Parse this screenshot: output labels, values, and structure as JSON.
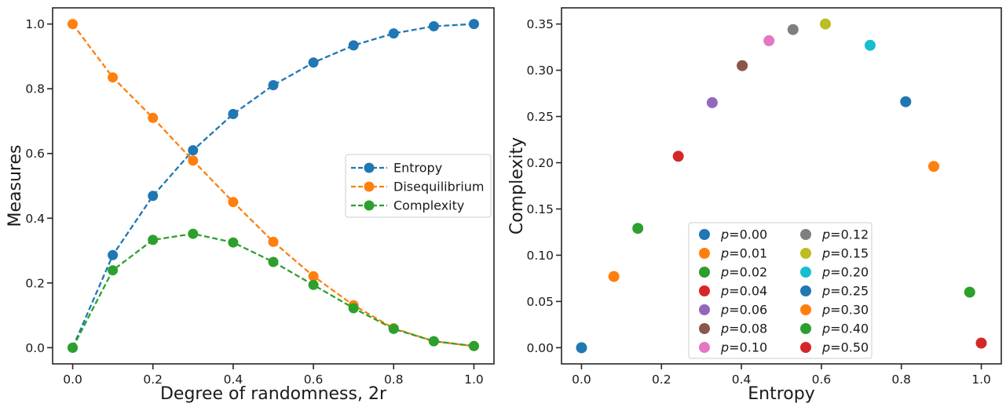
{
  "figure": {
    "background": "#ffffff",
    "spine_color": "#262626",
    "text_color": "#1a1a1a",
    "legend_border_color": "#cccccc",
    "legend_background": "#ffffff"
  },
  "chart_data": [
    {
      "id": "measures-vs-randomness",
      "type": "line",
      "title": "",
      "xlabel": "Degree of randomness, 2r",
      "ylabel": "Measures",
      "grid": false,
      "linestyle": "dashed",
      "marker": "circle",
      "xlim": [
        -0.05,
        1.05
      ],
      "ylim": [
        -0.05,
        1.05
      ],
      "x": [
        0.0,
        0.1,
        0.2,
        0.3,
        0.4,
        0.5,
        0.6,
        0.7,
        0.8,
        0.9,
        1.0
      ],
      "series": [
        {
          "name": "Entropy",
          "color": "#1f77b4",
          "values": [
            0.0,
            0.286,
            0.469,
            0.61,
            0.722,
            0.811,
            0.881,
            0.934,
            0.971,
            0.993,
            1.0
          ]
        },
        {
          "name": "Disequilibrium",
          "color": "#ff7f0e",
          "values": [
            1.0,
            0.835,
            0.71,
            0.578,
            0.45,
            0.327,
            0.221,
            0.131,
            0.06,
            0.02,
            0.005
          ]
        },
        {
          "name": "Complexity",
          "color": "#2ca02c",
          "values": [
            0.0,
            0.239,
            0.333,
            0.352,
            0.325,
            0.265,
            0.194,
            0.122,
            0.058,
            0.02,
            0.005
          ]
        }
      ],
      "xticks": {
        "values": [
          0.0,
          0.2,
          0.4,
          0.6,
          0.8,
          1.0
        ],
        "labels": [
          "0.0",
          "0.2",
          "0.4",
          "0.6",
          "0.8",
          "1.0"
        ]
      },
      "yticks": {
        "values": [
          0.0,
          0.2,
          0.4,
          0.6,
          0.8,
          1.0
        ],
        "labels": [
          "0.0",
          "0.2",
          "0.4",
          "0.6",
          "0.8",
          "1.0"
        ]
      },
      "legend": {
        "position": "center right",
        "labels": [
          "Entropy",
          "Disequilibrium",
          "Complexity"
        ]
      }
    },
    {
      "id": "complexity-vs-entropy",
      "type": "scatter",
      "title": "",
      "xlabel": "Entropy",
      "ylabel": "Complexity",
      "grid": false,
      "legend_var": "p",
      "xlim": [
        -0.05,
        1.05
      ],
      "ylim": [
        -0.0175,
        0.3675
      ],
      "points": [
        {
          "label": "p=0.00",
          "x": 0.0,
          "y": 0.0,
          "color": "#1f77b4"
        },
        {
          "label": "p=0.01",
          "x": 0.081,
          "y": 0.077,
          "color": "#ff7f0e"
        },
        {
          "label": "p=0.02",
          "x": 0.141,
          "y": 0.129,
          "color": "#2ca02c"
        },
        {
          "label": "p=0.04",
          "x": 0.242,
          "y": 0.207,
          "color": "#d62728"
        },
        {
          "label": "p=0.06",
          "x": 0.327,
          "y": 0.265,
          "color": "#9467bd"
        },
        {
          "label": "p=0.08",
          "x": 0.402,
          "y": 0.305,
          "color": "#8c564b"
        },
        {
          "label": "p=0.10",
          "x": 0.469,
          "y": 0.332,
          "color": "#e377c2"
        },
        {
          "label": "p=0.12",
          "x": 0.529,
          "y": 0.344,
          "color": "#7f7f7f"
        },
        {
          "label": "p=0.15",
          "x": 0.61,
          "y": 0.35,
          "color": "#bcbd22"
        },
        {
          "label": "p=0.20",
          "x": 0.722,
          "y": 0.327,
          "color": "#17becf"
        },
        {
          "label": "p=0.25",
          "x": 0.811,
          "y": 0.266,
          "color": "#1f77b4"
        },
        {
          "label": "p=0.30",
          "x": 0.881,
          "y": 0.196,
          "color": "#ff7f0e"
        },
        {
          "label": "p=0.40",
          "x": 0.971,
          "y": 0.06,
          "color": "#2ca02c"
        },
        {
          "label": "p=0.50",
          "x": 1.0,
          "y": 0.005,
          "color": "#d62728"
        }
      ],
      "xticks": {
        "values": [
          0.0,
          0.2,
          0.4,
          0.6,
          0.8,
          1.0
        ],
        "labels": [
          "0.0",
          "0.2",
          "0.4",
          "0.6",
          "0.8",
          "1.0"
        ]
      },
      "yticks": {
        "values": [
          0.0,
          0.05,
          0.1,
          0.15,
          0.2,
          0.25,
          0.3,
          0.35
        ],
        "labels": [
          "0.00",
          "0.05",
          "0.10",
          "0.15",
          "0.20",
          "0.25",
          "0.30",
          "0.35"
        ]
      },
      "legend": {
        "position": "lower center",
        "columns": 2
      }
    }
  ]
}
